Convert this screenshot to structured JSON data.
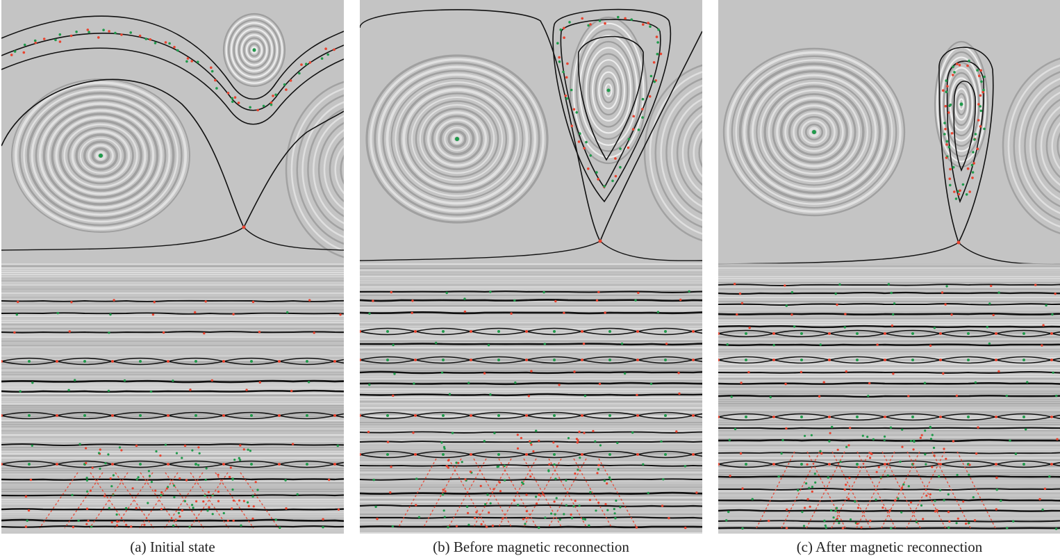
{
  "figure": {
    "panels": [
      {
        "id": "a",
        "caption": "(a)  Initial state"
      },
      {
        "id": "b",
        "caption": "(b)  Before magnetic reconnection"
      },
      {
        "id": "c",
        "caption": "(c)  After magnetic reconnection"
      }
    ]
  },
  "colors": {
    "background": "#c4c4c4",
    "streak_light": "#e6e6e6",
    "streak_dark": "#9a9a9a",
    "separatrix": "#111111",
    "critical_point_red": "#e8432f",
    "critical_point_green": "#1f9a4a"
  }
}
